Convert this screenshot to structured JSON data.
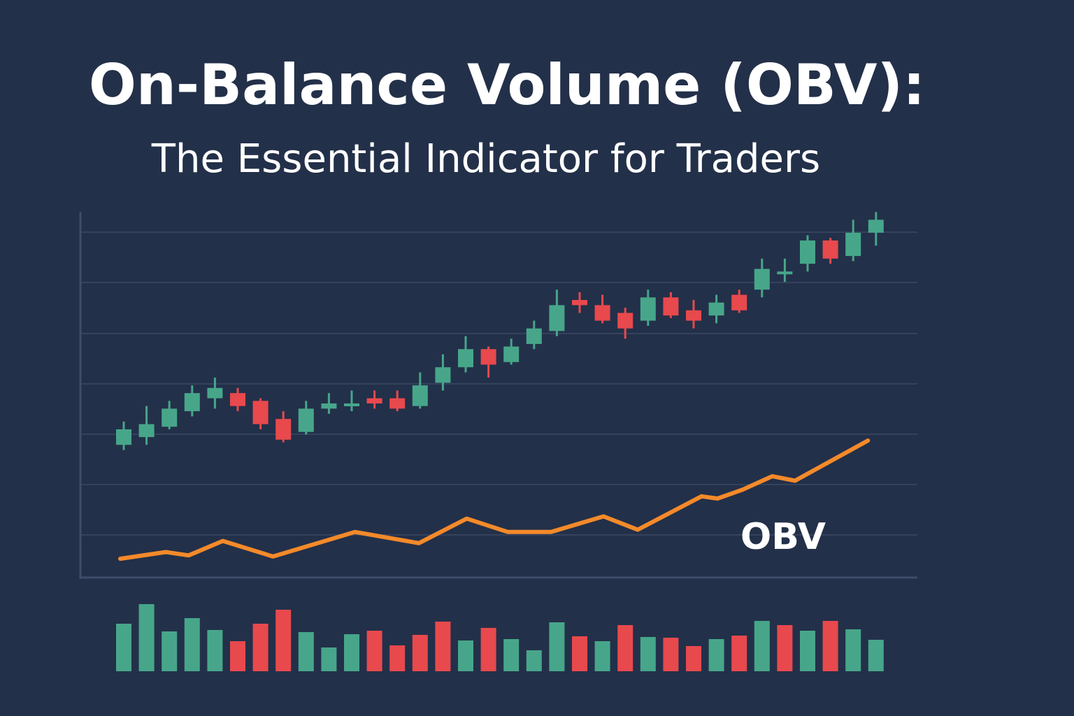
{
  "header": {
    "title": "On-Balance Volume (OBV):",
    "subtitle": "The Essential Indicator for Traders"
  },
  "chart_data": {
    "type": "candlestick",
    "title": "On-Balance Volume (OBV):",
    "subtitle": "The Essential Indicator for Traders",
    "grid": true,
    "colors": {
      "background": "#233049",
      "grid": "#34425d",
      "axis": "#3f4d6a",
      "up": "#47a68a",
      "down": "#e8494d",
      "obv_line": "#f48a2a",
      "text": "#ffffff"
    },
    "price_range": [
      0,
      100
    ],
    "candles": [
      {
        "open": 14,
        "close": 20,
        "high": 23,
        "low": 12,
        "dir": "up"
      },
      {
        "open": 17,
        "close": 22,
        "high": 29,
        "low": 14,
        "dir": "up"
      },
      {
        "open": 21,
        "close": 28,
        "high": 31,
        "low": 20,
        "dir": "up"
      },
      {
        "open": 27,
        "close": 34,
        "high": 37,
        "low": 25,
        "dir": "up"
      },
      {
        "open": 32,
        "close": 36,
        "high": 40,
        "low": 28,
        "dir": "up"
      },
      {
        "open": 34,
        "close": 29,
        "high": 36,
        "low": 27,
        "dir": "down"
      },
      {
        "open": 31,
        "close": 22,
        "high": 32,
        "low": 20,
        "dir": "down"
      },
      {
        "open": 24,
        "close": 16,
        "high": 27,
        "low": 15,
        "dir": "down"
      },
      {
        "open": 19,
        "close": 28,
        "high": 31,
        "low": 18,
        "dir": "up"
      },
      {
        "open": 28,
        "close": 30,
        "high": 34,
        "low": 26,
        "dir": "up"
      },
      {
        "open": 29,
        "close": 30,
        "high": 35,
        "low": 27,
        "dir": "up"
      },
      {
        "open": 32,
        "close": 30,
        "high": 35,
        "low": 28,
        "dir": "down"
      },
      {
        "open": 32,
        "close": 28,
        "high": 35,
        "low": 27,
        "dir": "down"
      },
      {
        "open": 29,
        "close": 37,
        "high": 42,
        "low": 28,
        "dir": "up"
      },
      {
        "open": 38,
        "close": 44,
        "high": 49,
        "low": 35,
        "dir": "up"
      },
      {
        "open": 44,
        "close": 51,
        "high": 56,
        "low": 42,
        "dir": "up"
      },
      {
        "open": 51,
        "close": 45,
        "high": 52,
        "low": 40,
        "dir": "down"
      },
      {
        "open": 46,
        "close": 52,
        "high": 55,
        "low": 45,
        "dir": "up"
      },
      {
        "open": 53,
        "close": 59,
        "high": 62,
        "low": 51,
        "dir": "up"
      },
      {
        "open": 58,
        "close": 68,
        "high": 74,
        "low": 56,
        "dir": "up"
      },
      {
        "open": 70,
        "close": 68,
        "high": 73,
        "low": 65,
        "dir": "down"
      },
      {
        "open": 68,
        "close": 62,
        "high": 72,
        "low": 61,
        "dir": "down"
      },
      {
        "open": 65,
        "close": 59,
        "high": 67,
        "low": 55,
        "dir": "down"
      },
      {
        "open": 62,
        "close": 71,
        "high": 74,
        "low": 60,
        "dir": "up"
      },
      {
        "open": 71,
        "close": 64,
        "high": 73,
        "low": 63,
        "dir": "down"
      },
      {
        "open": 66,
        "close": 62,
        "high": 70,
        "low": 59,
        "dir": "down"
      },
      {
        "open": 64,
        "close": 69,
        "high": 72,
        "low": 61,
        "dir": "up"
      },
      {
        "open": 72,
        "close": 66,
        "high": 74,
        "low": 65,
        "dir": "down"
      },
      {
        "open": 74,
        "close": 82,
        "high": 86,
        "low": 71,
        "dir": "up"
      },
      {
        "open": 80,
        "close": 81,
        "high": 86,
        "low": 77,
        "dir": "up"
      },
      {
        "open": 84,
        "close": 93,
        "high": 95,
        "low": 81,
        "dir": "up"
      },
      {
        "open": 93,
        "close": 86,
        "high": 94,
        "low": 84,
        "dir": "down"
      },
      {
        "open": 87,
        "close": 96,
        "high": 101,
        "low": 85,
        "dir": "up"
      },
      {
        "open": 96,
        "close": 101,
        "high": 104,
        "low": 91,
        "dir": "up"
      }
    ],
    "obv_label": "OBV",
    "obv_series": {
      "name": "OBV",
      "x": [
        0,
        2,
        3,
        4.5,
        6.7,
        10.3,
        13.1,
        15.2,
        17,
        18.9,
        21.2,
        22.7,
        25.5,
        26.2,
        27.3,
        28.6,
        29.6,
        32.8
      ],
      "values": [
        5,
        8,
        6.5,
        13,
        6,
        17,
        12,
        23,
        17,
        17,
        24,
        18,
        33,
        32,
        36,
        42,
        40,
        58
      ]
    },
    "obv_range": [
      0,
      80
    ],
    "volume": {
      "values": [
        68,
        96,
        57,
        76,
        59,
        43,
        68,
        88,
        56,
        34,
        53,
        58,
        37,
        52,
        71,
        44,
        62,
        46,
        30,
        70,
        50,
        43,
        66,
        49,
        48,
        36,
        46,
        51,
        72,
        66,
        58,
        72,
        60,
        45
      ],
      "dir": [
        "up",
        "up",
        "up",
        "up",
        "up",
        "down",
        "down",
        "down",
        "up",
        "up",
        "up",
        "down",
        "down",
        "down",
        "down",
        "up",
        "down",
        "up",
        "up",
        "up",
        "down",
        "up",
        "down",
        "up",
        "down",
        "down",
        "up",
        "down",
        "up",
        "down",
        "up",
        "down",
        "up",
        "up"
      ],
      "max": 100
    }
  }
}
